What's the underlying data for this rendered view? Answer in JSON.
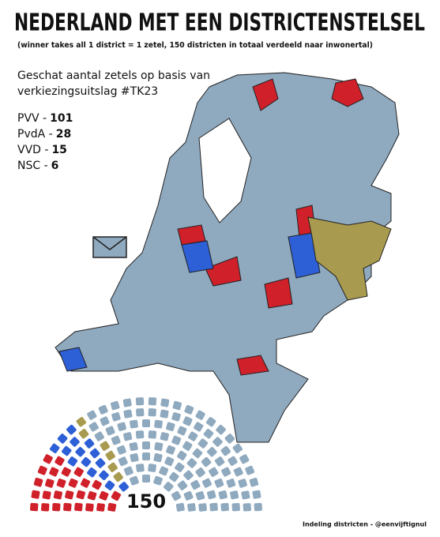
{
  "header": {
    "title": "NEDERLAND MET EEN DISTRICTENSTELSEL",
    "subtitle": "(winner takes all 1 district = 1 zetel, 150 districten in totaal verdeeld naar inwonertal)"
  },
  "description": [
    "Geschat aantal zetels op basis van",
    "verkiezingsuitslag #TK23"
  ],
  "parties": [
    {
      "label": "PVV -",
      "seats": 101,
      "color": "#8fa9bf"
    },
    {
      "label": "PvdA -",
      "seats": 28,
      "color": "#d0202a"
    },
    {
      "label": "VVD -",
      "seats": 15,
      "color": "#2d5fd6"
    },
    {
      "label": "NSC -",
      "seats": 6,
      "color": "#a89a4e"
    }
  ],
  "parliament": {
    "total": 150,
    "order": [
      1,
      2,
      3,
      0
    ]
  },
  "footer": "Indeling districten - @eenvijftignul"
}
